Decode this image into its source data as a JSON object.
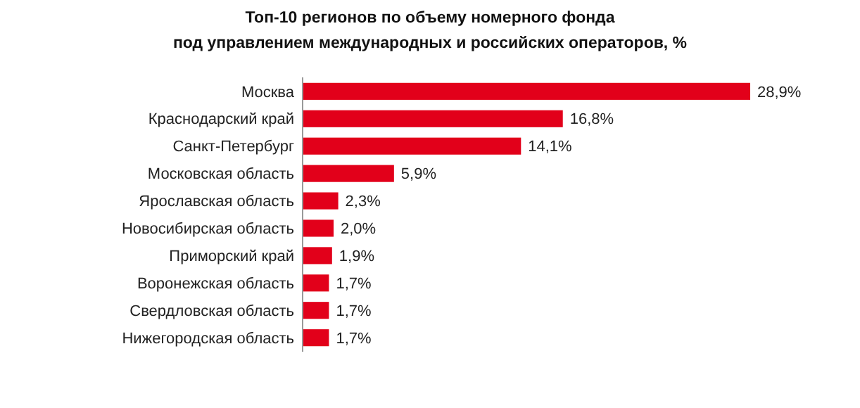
{
  "chart_data": {
    "type": "bar",
    "orientation": "horizontal",
    "title": "Топ-10 регионов по объему номерного фонда\nпод управлением международных и российских операторов, %",
    "categories": [
      "Москва",
      "Краснодарский край",
      "Санкт-Петербург",
      "Московская область",
      "Ярославская область",
      "Новосибирская область",
      "Приморский край",
      "Воронежская область",
      "Свердловская область",
      "Нижегородская область"
    ],
    "values": [
      28.9,
      16.8,
      14.1,
      5.9,
      2.3,
      2.0,
      1.9,
      1.7,
      1.7,
      1.7
    ],
    "value_labels": [
      "28,9%",
      "16,8%",
      "14,1%",
      "5,9%",
      "2,3%",
      "2,0%",
      "1,9%",
      "1,7%",
      "1,7%",
      "1,7%"
    ],
    "color": "#e2001a"
  }
}
